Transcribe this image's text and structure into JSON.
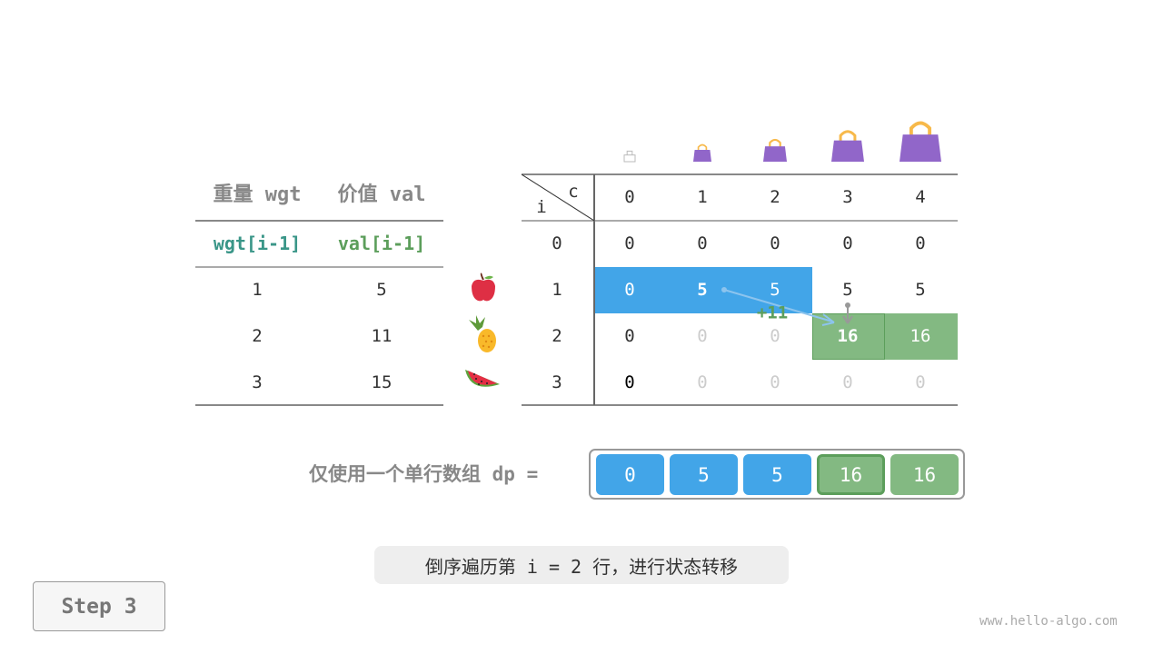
{
  "items_table": {
    "headers": [
      "重量 wgt",
      "价值 val"
    ],
    "subheaders": [
      "wgt[i-1]",
      "val[i-1]"
    ],
    "rows": [
      {
        "wgt": "1",
        "val": "5",
        "icon": "apple-icon"
      },
      {
        "wgt": "2",
        "val": "11",
        "icon": "pineapple-icon"
      },
      {
        "wgt": "3",
        "val": "15",
        "icon": "watermelon-icon"
      }
    ]
  },
  "dp_table": {
    "corner_col": "c",
    "corner_row": "i",
    "cols": [
      "0",
      "1",
      "2",
      "3",
      "4"
    ],
    "rows": [
      {
        "i": "0",
        "vals": [
          "0",
          "0",
          "0",
          "0",
          "0"
        ]
      },
      {
        "i": "1",
        "vals": [
          "0",
          "5",
          "5",
          "5",
          "5"
        ]
      },
      {
        "i": "2",
        "vals": [
          "0",
          "0",
          "0",
          "16",
          "16"
        ]
      },
      {
        "i": "3",
        "vals": [
          "0",
          "0",
          "0",
          "0",
          "0"
        ]
      }
    ],
    "plus_label": "+11",
    "capacity_icon": "bag-icon"
  },
  "dp_array": {
    "label": "仅使用一个单行数组 dp =",
    "values": [
      "0",
      "5",
      "5",
      "16",
      "16"
    ]
  },
  "caption": "倒序遍历第 i = 2 行，进行状态转移",
  "step_button": "Step 3",
  "watermark": "www.hello-algo.com",
  "colors": {
    "blue": "#42a5e8",
    "green": "#83b982",
    "dark_green": "#5c9e5b",
    "teal": "#3a9688",
    "gray_text": "#888888"
  }
}
